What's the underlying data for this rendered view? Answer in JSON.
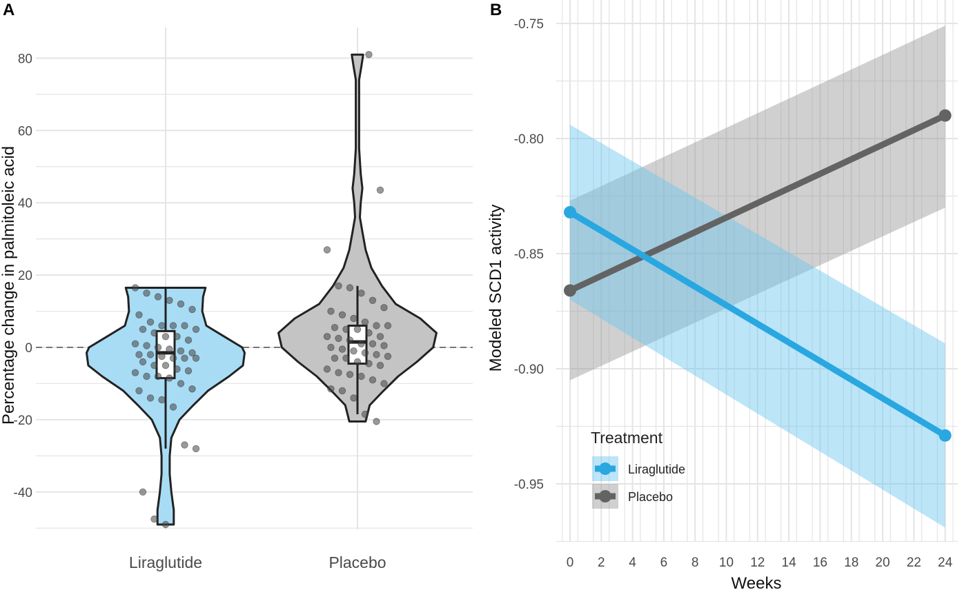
{
  "colors": {
    "liraglutide": "#29a7e1",
    "liraglutide_fill": "#a8dcf5",
    "placebo": "#636363",
    "placebo_fill": "#c4c4c4",
    "grid": "#e4e4e4",
    "outline": "#222222"
  },
  "chart_data": [
    {
      "type": "violin",
      "panel": "A",
      "title": "",
      "xlabel": "",
      "ylabel": "Percentage change in palmitoleic acid",
      "categories": [
        "Liraglutide",
        "Placebo"
      ],
      "ylim": [
        -50,
        88
      ],
      "yticks": [
        80,
        60,
        40,
        20,
        0,
        -20,
        -40
      ],
      "yticklabels": [
        "80",
        "60",
        "40",
        "20",
        "0",
        "-20",
        "-40"
      ],
      "reference_line": 0,
      "box": [
        {
          "name": "Liraglutide",
          "whisker_low": -28,
          "q1": -8.5,
          "median": -1.5,
          "q3": 4.5,
          "whisker_high": 16.5
        },
        {
          "name": "Placebo",
          "whisker_low": -18.5,
          "q1": -4.5,
          "median": 1.5,
          "q3": 6,
          "whisker_high": 17
        }
      ],
      "violins": [
        {
          "name": "Liraglutide",
          "min": -49,
          "max": 16.5,
          "profile": [
            [
              16.5,
              0.49
            ],
            [
              14,
              0.46
            ],
            [
              10,
              0.45
            ],
            [
              6,
              0.5
            ],
            [
              3,
              0.72
            ],
            [
              0,
              0.94
            ],
            [
              -1.5,
              0.97
            ],
            [
              -5,
              0.95
            ],
            [
              -8,
              0.78
            ],
            [
              -12,
              0.52
            ],
            [
              -16,
              0.34
            ],
            [
              -20,
              0.17
            ],
            [
              -25,
              0.07
            ],
            [
              -30,
              0.05
            ],
            [
              -35,
              0.05
            ],
            [
              -40,
              0.07
            ],
            [
              -45,
              0.1
            ],
            [
              -49,
              0.1
            ]
          ]
        },
        {
          "name": "Placebo",
          "min": -20.5,
          "max": 81,
          "profile": [
            [
              81,
              0.07
            ],
            [
              78,
              0.05
            ],
            [
              74,
              0.02
            ],
            [
              65,
              0.02
            ],
            [
              55,
              0.02
            ],
            [
              48,
              0.04
            ],
            [
              44,
              0.06
            ],
            [
              40,
              0.04
            ],
            [
              36,
              0.03
            ],
            [
              32,
              0.06
            ],
            [
              27,
              0.1
            ],
            [
              22,
              0.17
            ],
            [
              17,
              0.3
            ],
            [
              12,
              0.47
            ],
            [
              8,
              0.77
            ],
            [
              4,
              0.97
            ],
            [
              0,
              0.93
            ],
            [
              -4,
              0.73
            ],
            [
              -8,
              0.5
            ],
            [
              -12,
              0.32
            ],
            [
              -16,
              0.15
            ],
            [
              -20.5,
              0.1
            ]
          ]
        }
      ],
      "points": [
        {
          "group": "Liraglutide",
          "values": [
            16.5,
            15,
            14,
            13,
            12,
            10.5,
            9,
            7,
            6,
            6,
            6,
            5,
            5,
            4,
            3,
            3,
            2,
            1,
            0.5,
            0,
            -0.5,
            -1,
            -1.5,
            -2,
            -2,
            -2.5,
            -3,
            -3,
            -3,
            -4,
            -5,
            -5,
            -6,
            -6.5,
            -7,
            -8,
            -8,
            -8.5,
            -10,
            -11.5,
            -12,
            -14,
            -14.5,
            -16.5,
            -27,
            -28,
            -40,
            -47.5,
            -49
          ]
        },
        {
          "group": "Placebo",
          "values": [
            81,
            43.5,
            27,
            17,
            16.5,
            15,
            13,
            11,
            10,
            9,
            8,
            7,
            6,
            6,
            5.5,
            5,
            5,
            4,
            3,
            3,
            2.5,
            2,
            1,
            1,
            0.5,
            0,
            -0.5,
            -1,
            -1.5,
            -2,
            -2.5,
            -3,
            -3,
            -4,
            -4.5,
            -5,
            -6,
            -7,
            -7.5,
            -8,
            -9,
            -10,
            -11.5,
            -12,
            -14,
            -18.5,
            -20.5
          ]
        }
      ]
    },
    {
      "type": "line",
      "panel": "B",
      "title": "",
      "xlabel": "Weeks",
      "ylabel": "Modeled SCD1 activity",
      "xlim": [
        -1,
        25
      ],
      "ylim": [
        -0.972,
        -0.742
      ],
      "xticks": [
        0,
        2,
        4,
        6,
        8,
        10,
        12,
        14,
        16,
        18,
        20,
        22,
        24
      ],
      "xticklabels": [
        "0",
        "2",
        "4",
        "6",
        "8",
        "10",
        "12",
        "14",
        "16",
        "18",
        "20",
        "22",
        "24"
      ],
      "yticks": [
        -0.75,
        -0.8,
        -0.85,
        -0.9,
        -0.95
      ],
      "yticklabels": [
        "-0.75",
        "-0.80",
        "-0.85",
        "-0.90",
        "-0.95"
      ],
      "series": [
        {
          "name": "Placebo",
          "x": [
            0,
            24
          ],
          "y": [
            -0.866,
            -0.79
          ],
          "ci_low": [
            -0.905,
            -0.83
          ],
          "ci_high": [
            -0.827,
            -0.751
          ]
        },
        {
          "name": "Liraglutide",
          "x": [
            0,
            24
          ],
          "y": [
            -0.832,
            -0.929
          ],
          "ci_low": [
            -0.87,
            -0.969
          ],
          "ci_high": [
            -0.794,
            -0.889
          ]
        }
      ],
      "legend": {
        "title": "Treatment",
        "position": "bottom-left",
        "entries": [
          "Liraglutide",
          "Placebo"
        ]
      }
    }
  ]
}
